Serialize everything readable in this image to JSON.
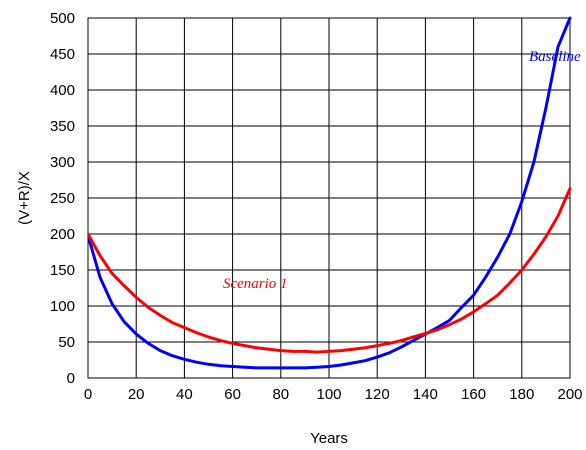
{
  "chart_data": {
    "type": "line",
    "title": "",
    "xlabel": "Years",
    "ylabel": "(V+R)/X",
    "xlim": [
      0,
      200
    ],
    "ylim": [
      0,
      500
    ],
    "xticks": [
      0,
      20,
      40,
      60,
      80,
      100,
      120,
      140,
      160,
      180,
      200
    ],
    "yticks": [
      0,
      50,
      100,
      150,
      200,
      250,
      300,
      350,
      400,
      450,
      500
    ],
    "grid": "both",
    "legend": "none",
    "series": [
      {
        "name": "Baseline",
        "color": "#0000FF",
        "x": [
          0,
          5,
          10,
          15,
          20,
          25,
          30,
          35,
          40,
          45,
          50,
          55,
          60,
          65,
          70,
          75,
          80,
          85,
          90,
          95,
          100,
          105,
          110,
          115,
          120,
          125,
          130,
          135,
          140,
          145,
          150,
          155,
          160,
          165,
          170,
          175,
          180,
          185,
          190,
          195,
          200
        ],
        "values": [
          198,
          140,
          103,
          78,
          61,
          48,
          38,
          31,
          26,
          22,
          19,
          17,
          16,
          15,
          14,
          14,
          14,
          14,
          14,
          15,
          16,
          18,
          21,
          24,
          29,
          35,
          43,
          52,
          61,
          70,
          80,
          98,
          115,
          140,
          168,
          200,
          245,
          300,
          375,
          460,
          500
        ]
      },
      {
        "name": "Scenario 1",
        "color": "#FF0000",
        "x": [
          0,
          5,
          10,
          15,
          20,
          25,
          30,
          35,
          40,
          45,
          50,
          55,
          60,
          65,
          70,
          75,
          80,
          85,
          90,
          95,
          100,
          105,
          110,
          115,
          120,
          125,
          130,
          135,
          140,
          145,
          150,
          155,
          160,
          165,
          170,
          175,
          180,
          185,
          190,
          195,
          200
        ],
        "values": [
          200,
          170,
          145,
          128,
          112,
          98,
          87,
          77,
          70,
          63,
          57,
          52,
          48,
          45,
          42,
          40,
          38,
          37,
          37,
          36,
          37,
          38,
          40,
          42,
          45,
          48,
          52,
          57,
          62,
          67,
          74,
          82,
          92,
          103,
          115,
          132,
          150,
          172,
          196,
          225,
          263
        ]
      }
    ],
    "annotations": [
      {
        "text": "Baseline",
        "color": "#0000FF",
        "x": 183,
        "y": 440
      },
      {
        "text": "Scenario 1",
        "color": "#FF0000",
        "x": 56,
        "y": 125
      }
    ]
  }
}
